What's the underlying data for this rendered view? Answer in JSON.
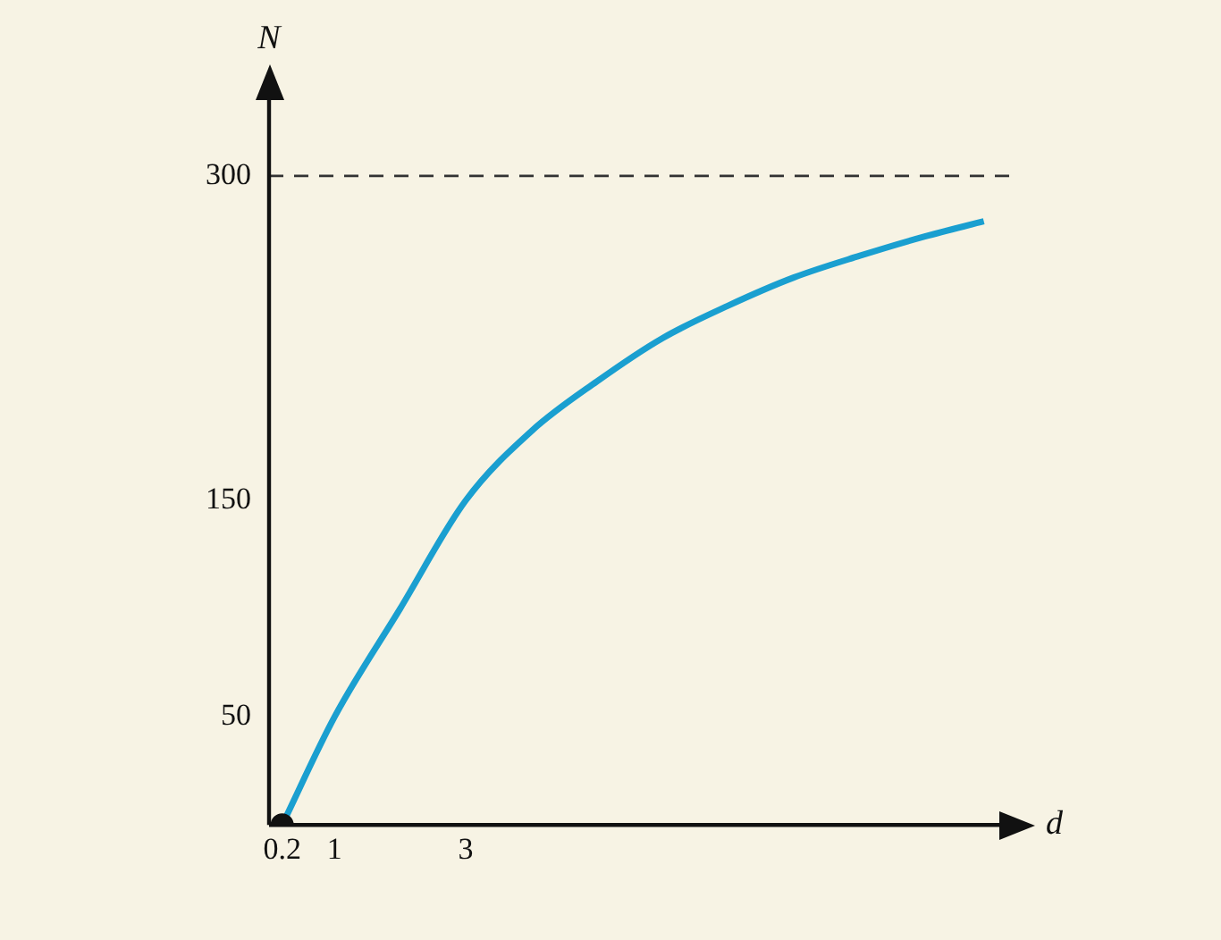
{
  "chart_data": {
    "type": "line",
    "xlabel": "d",
    "ylabel": "N",
    "series": [
      {
        "type": "line",
        "color": "#1a9fd0",
        "x": [
          0.2,
          1,
          2,
          3,
          4,
          5,
          6,
          7,
          8,
          9,
          10,
          10.9
        ],
        "values": [
          0,
          50,
          100,
          150,
          182,
          205,
          225,
          240,
          253,
          263,
          272,
          279
        ]
      },
      {
        "type": "scatter",
        "color": "#111111",
        "x": [
          0.2
        ],
        "values": [
          0
        ]
      }
    ],
    "xlim": [
      0,
      11.3
    ],
    "ylim": [
      0,
      340
    ],
    "xticks": [
      0.2,
      1,
      3
    ],
    "yticks": [
      50,
      150,
      300
    ],
    "ref_lines": [
      {
        "axis": "y",
        "value": 300,
        "line_style": "dashed",
        "color": "#333333"
      }
    ],
    "grid": false,
    "legend": false,
    "line_style": "solid"
  }
}
